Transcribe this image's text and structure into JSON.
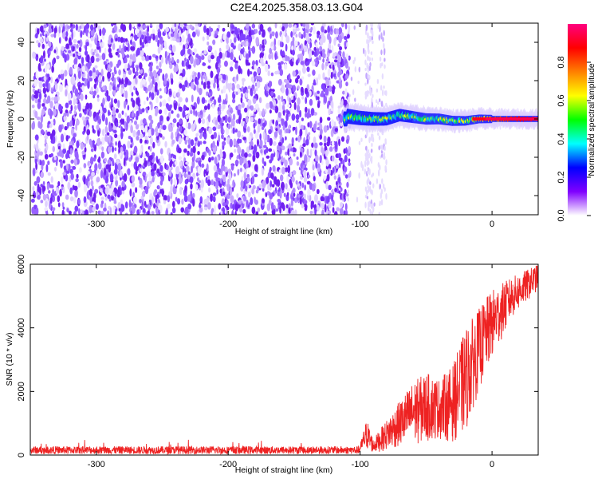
{
  "title": "C2E4.2025.358.03.13.G04",
  "chart_data": [
    {
      "type": "heatmap",
      "xlabel": "Height of straight line (km)",
      "ylabel": "Frequency (Hz)",
      "xlim": [
        -350,
        35
      ],
      "ylim": [
        -50,
        50
      ],
      "xticks": [
        -300,
        -200,
        -100,
        0
      ],
      "yticks": [
        -40,
        -20,
        0,
        20,
        40
      ],
      "noise_region_km": [
        -350,
        -110
      ],
      "sparse_noise_km": [
        -110,
        -80
      ],
      "signal": {
        "start_km": -112,
        "center_frequency_hz": 0,
        "spread_hz": 4,
        "track": [
          {
            "x": -110,
            "y": 1.5
          },
          {
            "x": -100,
            "y": 0.5
          },
          {
            "x": -90,
            "y": 0
          },
          {
            "x": -80,
            "y": 0
          },
          {
            "x": -70,
            "y": 2
          },
          {
            "x": -60,
            "y": 1
          },
          {
            "x": -50,
            "y": 0
          },
          {
            "x": -40,
            "y": 0
          },
          {
            "x": -30,
            "y": -1
          },
          {
            "x": -20,
            "y": -1
          },
          {
            "x": -10,
            "y": 0
          },
          {
            "x": 0,
            "y": 0
          },
          {
            "x": 35,
            "y": 0
          }
        ]
      },
      "grid": false
    },
    {
      "type": "colorbar",
      "label": "Normalized spectral amplitude",
      "range": [
        0,
        1
      ],
      "ticks": [
        "0.0",
        "0.2",
        "0.4",
        "0.6",
        "0.8"
      ],
      "colors": [
        "#ffffff",
        "#8000ff",
        "#0000ff",
        "#00ffff",
        "#00ff00",
        "#ffff00",
        "#ff8000",
        "#ff0000",
        "#ff0080"
      ]
    },
    {
      "type": "line",
      "xlabel": "Height of straight line (km)",
      "ylabel": "SNR (10 * v/v)",
      "xlim": [
        -350,
        35
      ],
      "ylim": [
        0,
        6000
      ],
      "xticks": [
        -300,
        -200,
        -100,
        0
      ],
      "yticks": [
        0,
        2000,
        4000,
        6000
      ],
      "series": [
        {
          "color": "#ee2222",
          "envelope": [
            {
              "x": -350,
              "low": 60,
              "high": 330
            },
            {
              "x": -250,
              "low": 60,
              "high": 330
            },
            {
              "x": -100,
              "low": 60,
              "high": 330
            },
            {
              "x": -95,
              "low": 150,
              "high": 1150
            },
            {
              "x": -90,
              "low": 60,
              "high": 500
            },
            {
              "x": -80,
              "low": 150,
              "high": 1100
            },
            {
              "x": -70,
              "low": 250,
              "high": 1700
            },
            {
              "x": -60,
              "low": 300,
              "high": 2300
            },
            {
              "x": -50,
              "low": 400,
              "high": 2600
            },
            {
              "x": -40,
              "low": 500,
              "high": 2400
            },
            {
              "x": -30,
              "low": 400,
              "high": 2800
            },
            {
              "x": -20,
              "low": 700,
              "high": 4000
            },
            {
              "x": -10,
              "low": 2000,
              "high": 4600
            },
            {
              "x": 0,
              "low": 3000,
              "high": 5200
            },
            {
              "x": 15,
              "low": 4300,
              "high": 5600
            },
            {
              "x": 35,
              "low": 5200,
              "high": 6000
            }
          ]
        }
      ]
    }
  ]
}
